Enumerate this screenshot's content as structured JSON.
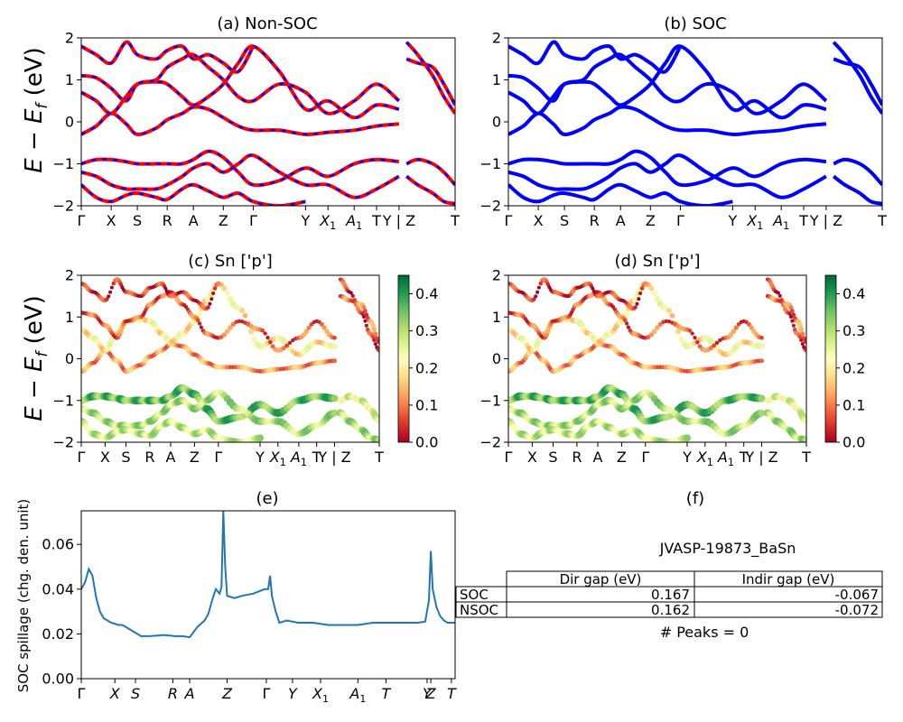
{
  "figure": {
    "ylabel_text": "E − E",
    "ylabel_sub": "f",
    "ylabel_unit": " (eV)",
    "spillage_ylabel": "SOC spillage (chg. den. unit)"
  },
  "colors": {
    "nonsoc_solid": "#ff0000",
    "nonsoc_dash": "#0000ff",
    "soc": "#0000ff",
    "spillage_line": "#1f77b4",
    "colormap": [
      "#a50026",
      "#d73027",
      "#f46d43",
      "#fdae61",
      "#fee08b",
      "#ffffbf",
      "#d9ef8b",
      "#a6d96a",
      "#66bd63",
      "#1a9850",
      "#006837"
    ]
  },
  "kpath_labels": [
    "Γ",
    "X",
    "S",
    "R",
    "A",
    "Z",
    "Γ",
    "Y",
    "X1",
    "A1",
    "T",
    "Y | Z",
    "T"
  ],
  "kpath_positions": [
    0,
    0.08,
    0.15,
    0.23,
    0.3,
    0.38,
    0.46,
    0.6,
    0.66,
    0.73,
    0.79,
    0.85,
    1.0
  ],
  "chart_data": [
    {
      "panel": "a",
      "type": "line",
      "title": "(a) Non-SOC",
      "ylabel": "E − E_f (eV)",
      "ylim": [
        -2,
        2
      ],
      "yticks": [
        -2,
        -1,
        0,
        1,
        2
      ],
      "style": "red solid with blue dashed overlay",
      "break_between": [
        "Y",
        "Z"
      ],
      "bands": [
        {
          "name": "b1",
          "k": [
            0,
            0.04,
            0.08,
            0.12,
            0.15,
            0.2,
            0.23,
            0.27,
            0.3,
            0.34,
            0.38,
            0.42,
            0.46,
            0.53,
            0.6,
            0.66,
            0.73,
            0.79,
            0.85
          ],
          "e": [
            -0.3,
            -0.1,
            0.2,
            -0.05,
            -0.3,
            -0.15,
            0.05,
            0.2,
            0.35,
            0.3,
            0.1,
            -0.1,
            -0.2,
            -0.2,
            -0.3,
            -0.25,
            -0.2,
            -0.1,
            -0.05
          ]
        },
        {
          "name": "b2",
          "k": [
            0,
            0.04,
            0.08,
            0.12,
            0.15,
            0.2,
            0.23,
            0.27,
            0.3,
            0.34,
            0.38,
            0.42,
            0.46,
            0.53,
            0.6,
            0.66,
            0.73,
            0.79,
            0.85
          ],
          "e": [
            0.7,
            0.5,
            0.2,
            0.6,
            0.9,
            0.95,
            0.9,
            0.6,
            0.4,
            0.6,
            0.9,
            1.4,
            1.8,
            1.2,
            0.3,
            0.5,
            0.1,
            0.4,
            0.3
          ]
        },
        {
          "name": "b3",
          "k": [
            0,
            0.04,
            0.08,
            0.12,
            0.15,
            0.2,
            0.23,
            0.27,
            0.3,
            0.34,
            0.38,
            0.42,
            0.46,
            0.53,
            0.6,
            0.66,
            0.73,
            0.79,
            0.85
          ],
          "e": [
            1.1,
            1.05,
            0.8,
            0.5,
            0.9,
            1.0,
            1.3,
            1.5,
            1.6,
            1.3,
            1.0,
            0.6,
            0.5,
            0.9,
            0.7,
            0.2,
            0.5,
            0.9,
            0.5
          ]
        },
        {
          "name": "b4",
          "k": [
            0,
            0.04,
            0.08,
            0.12,
            0.15,
            0.2,
            0.23,
            0.27,
            0.3,
            0.34,
            0.38,
            0.42,
            0.46
          ],
          "e": [
            1.8,
            1.6,
            1.4,
            1.9,
            1.6,
            1.5,
            1.7,
            1.8,
            1.5,
            1.6,
            1.4,
            1.2,
            1.8
          ]
        },
        {
          "name": "b5",
          "k": [
            0,
            0.04,
            0.08,
            0.12,
            0.15,
            0.2,
            0.23,
            0.27,
            0.3,
            0.34,
            0.38,
            0.42,
            0.46,
            0.53,
            0.6,
            0.66,
            0.73,
            0.79,
            0.85
          ],
          "e": [
            -1.0,
            -0.9,
            -0.9,
            -0.95,
            -1.0,
            -1.0,
            -1.0,
            -1.0,
            -0.9,
            -0.7,
            -0.85,
            -1.2,
            -1.5,
            -1.4,
            -1.1,
            -1.3,
            -1.0,
            -0.9,
            -0.95
          ]
        },
        {
          "name": "b6",
          "k": [
            0,
            0.04,
            0.08,
            0.12,
            0.15,
            0.2,
            0.23,
            0.27,
            0.3,
            0.34,
            0.38,
            0.42,
            0.46,
            0.53,
            0.6,
            0.66,
            0.73,
            0.79,
            0.85
          ],
          "e": [
            -1.2,
            -1.3,
            -1.5,
            -1.6,
            -1.6,
            -1.6,
            -1.5,
            -1.3,
            -1.1,
            -1.0,
            -1.2,
            -1.0,
            -0.8,
            -1.2,
            -1.5,
            -1.5,
            -1.8,
            -1.6,
            -1.3
          ]
        },
        {
          "name": "b7",
          "k": [
            0,
            0.04,
            0.08,
            0.12,
            0.15,
            0.2,
            0.23,
            0.27,
            0.3,
            0.34,
            0.38,
            0.42,
            0.46,
            0.53,
            0.6
          ],
          "e": [
            -1.5,
            -1.8,
            -1.9,
            -1.75,
            -1.7,
            -1.8,
            -1.85,
            -1.6,
            -1.5,
            -1.65,
            -1.8,
            -1.7,
            -1.9,
            -2.0,
            -1.9
          ]
        },
        {
          "name": "b8",
          "k": [
            0.87,
            0.9,
            0.94,
            0.97,
            1.0
          ],
          "e": [
            1.9,
            1.6,
            1.1,
            0.6,
            0.2
          ]
        },
        {
          "name": "b9",
          "k": [
            0.87,
            0.9,
            0.94,
            0.97,
            1.0
          ],
          "e": [
            1.5,
            1.4,
            1.3,
            0.9,
            0.4
          ]
        },
        {
          "name": "b10",
          "k": [
            0.87,
            0.9,
            0.94,
            0.97,
            1.0
          ],
          "e": [
            -1.3,
            -1.5,
            -1.7,
            -1.9,
            -1.95
          ]
        },
        {
          "name": "b11",
          "k": [
            0.87,
            0.9,
            0.94,
            0.97,
            1.0
          ],
          "e": [
            -1.0,
            -0.9,
            -1.0,
            -1.2,
            -1.5
          ]
        }
      ]
    },
    {
      "panel": "b",
      "type": "line",
      "title": "(b) SOC",
      "ylim": [
        -2,
        2
      ],
      "yticks": [
        -2,
        -1,
        0,
        1,
        2
      ],
      "style": "blue solid",
      "break_between": [
        "Y",
        "Z"
      ],
      "bands_same_shape_as": "a"
    },
    {
      "panel": "c",
      "type": "scatter",
      "title": "(c)  Sn ['p']",
      "ylabel": "E − E_f (eV)",
      "ylim": [
        -2,
        2
      ],
      "yticks": [
        -2,
        -1,
        0,
        1,
        2
      ],
      "colorbar": {
        "range": [
          0,
          0.45
        ],
        "ticks": [
          0.0,
          0.1,
          0.2,
          0.3,
          0.4
        ],
        "labels": [
          "0.0",
          "0.1",
          "0.2",
          "0.3",
          "0.4"
        ]
      },
      "points_follow_bands_of": "a",
      "band_weights": {
        "b1": 0.12,
        "b2": 0.2,
        "b3": 0.08,
        "b4": 0.05,
        "b5": 0.35,
        "b6": 0.3,
        "b7": 0.28,
        "b8": 0.05,
        "b9": 0.1,
        "b10": 0.3,
        "b11": 0.25
      }
    },
    {
      "panel": "d",
      "type": "scatter",
      "title": "(d) Sn ['p']",
      "ylim": [
        -2,
        2
      ],
      "yticks": [
        -2,
        -1,
        0,
        1,
        2
      ],
      "colorbar": {
        "range": [
          0,
          0.45
        ],
        "ticks": [
          0.0,
          0.1,
          0.2,
          0.3,
          0.4
        ],
        "labels": [
          "0.0",
          "0.1",
          "0.2",
          "0.3",
          "0.4"
        ]
      },
      "points_follow_bands_of": "a",
      "band_weights": {
        "b1": 0.12,
        "b2": 0.2,
        "b3": 0.08,
        "b4": 0.05,
        "b5": 0.35,
        "b6": 0.3,
        "b7": 0.28,
        "b8": 0.05,
        "b9": 0.1,
        "b10": 0.3,
        "b11": 0.25
      }
    },
    {
      "panel": "e",
      "type": "line",
      "title": "(e)",
      "ylabel": "SOC spillage (chg. den. unit)",
      "ylim": [
        0,
        0.075
      ],
      "yticks": [
        0.0,
        0.02,
        0.04,
        0.06
      ],
      "ytick_labels": [
        "0.00",
        "0.02",
        "0.04",
        "0.06"
      ],
      "xtick_labels": [
        "Γ",
        "X",
        "S",
        "R",
        "A",
        "Z",
        "Γ",
        "Y",
        "X1",
        "A1",
        "T",
        "Y",
        "Z",
        "T"
      ],
      "xtick_positions": [
        0,
        0.09,
        0.145,
        0.245,
        0.29,
        0.39,
        0.495,
        0.565,
        0.64,
        0.74,
        0.815,
        0.925,
        0.935,
        0.99
      ],
      "x": [
        0,
        0.01,
        0.02,
        0.03,
        0.04,
        0.05,
        0.06,
        0.08,
        0.1,
        0.11,
        0.13,
        0.14,
        0.16,
        0.18,
        0.2,
        0.22,
        0.24,
        0.25,
        0.27,
        0.29,
        0.31,
        0.33,
        0.34,
        0.35,
        0.36,
        0.37,
        0.375,
        0.38,
        0.385,
        0.39,
        0.41,
        0.43,
        0.46,
        0.49,
        0.5,
        0.505,
        0.51,
        0.52,
        0.53,
        0.55,
        0.58,
        0.62,
        0.66,
        0.7,
        0.74,
        0.78,
        0.82,
        0.86,
        0.9,
        0.92,
        0.93,
        0.935,
        0.94,
        0.95,
        0.96,
        0.97,
        0.98,
        0.99,
        1.0
      ],
      "y": [
        0.04,
        0.043,
        0.049,
        0.046,
        0.036,
        0.03,
        0.027,
        0.025,
        0.024,
        0.024,
        0.022,
        0.021,
        0.019,
        0.019,
        0.0192,
        0.0195,
        0.0192,
        0.019,
        0.019,
        0.0185,
        0.023,
        0.026,
        0.029,
        0.035,
        0.04,
        0.038,
        0.041,
        0.075,
        0.05,
        0.037,
        0.036,
        0.037,
        0.038,
        0.04,
        0.04,
        0.046,
        0.037,
        0.03,
        0.025,
        0.026,
        0.025,
        0.025,
        0.024,
        0.024,
        0.024,
        0.025,
        0.025,
        0.025,
        0.025,
        0.0255,
        0.035,
        0.057,
        0.04,
        0.032,
        0.028,
        0.026,
        0.025,
        0.025,
        0.025
      ]
    }
  ],
  "info_panel": {
    "title": "(f)",
    "material": "JVASP-19873_BaSn",
    "table": {
      "headers": [
        "Dir gap (eV)",
        "Indir gap (eV)"
      ],
      "rows": [
        {
          "label": "SOC",
          "dir": "0.167",
          "indir": "-0.067"
        },
        {
          "label": "NSOC",
          "dir": "0.162",
          "indir": "-0.072"
        }
      ]
    },
    "peaks": "# Peaks = 0"
  }
}
